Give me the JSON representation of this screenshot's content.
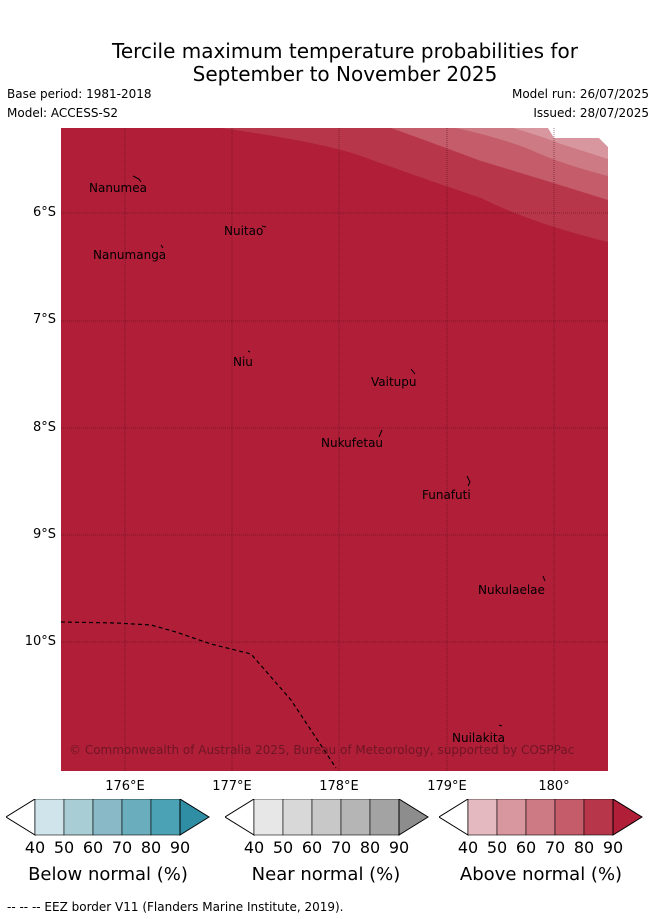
{
  "title": {
    "line1": "Tercile maximum temperature probabilities for",
    "line2": "September to November 2025"
  },
  "meta": {
    "base_period": "Base period: 1981-2018",
    "model": "Model: ACCESS-S2",
    "model_run": "Model run: 26/07/2025",
    "issued": "Issued: 28/07/2025"
  },
  "map": {
    "latitude_labels": [
      "6°S",
      "7°S",
      "8°S",
      "9°S",
      "10°S"
    ],
    "longitude_labels": [
      "176°E",
      "177°E",
      "178°E",
      "179°E",
      "180°"
    ],
    "places": [
      "Nanumea",
      "Nuitao",
      "Nanumanga",
      "Niu",
      "Vaitupu",
      "Nukufetau",
      "Funafuti",
      "Nukulaelae",
      "Nuilakita"
    ],
    "credit": "© Commonwealth of Australia 2025, Bureau of Meteorology, supported by COSPPac",
    "dominant_category": "Above normal, ≥90%"
  },
  "legend": {
    "tick_values": [
      "40",
      "50",
      "60",
      "70",
      "80",
      "90"
    ],
    "below": {
      "label": "Below normal (%)",
      "colors": [
        "#ffffff",
        "#cfe5eb",
        "#a8cdd4",
        "#89b9c6",
        "#6aaebd",
        "#4aa2b4",
        "#2f8ea3"
      ]
    },
    "near": {
      "label": "Near normal (%)",
      "colors": [
        "#ffffff",
        "#e7e7e7",
        "#d8d8d8",
        "#c8c8c8",
        "#b5b5b5",
        "#a3a3a3",
        "#8d8d8d"
      ]
    },
    "above": {
      "label": "Above normal (%)",
      "colors": [
        "#ffffff",
        "#e4b9c0",
        "#d8969f",
        "#cd7a84",
        "#c45c69",
        "#b8364a",
        "#b01e38"
      ]
    }
  },
  "footer": "-- -- -- EEZ border V11 (Flanders Marine Institute, 2019)."
}
